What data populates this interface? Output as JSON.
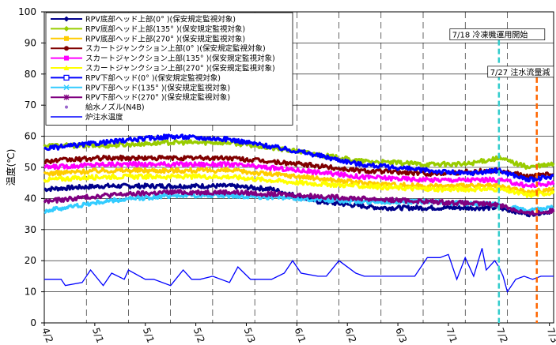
{
  "chart_data": {
    "type": "line",
    "ylabel": "温度(℃)",
    "ylim": [
      0,
      100
    ],
    "yticks": [
      0,
      10,
      20,
      30,
      40,
      50,
      60,
      70,
      80,
      90,
      100
    ],
    "x_range": [
      "2013-04-01",
      "2013-07-31"
    ],
    "xtick_dates": [
      "2013-04-01",
      "2013-04-11",
      "2013-04-21",
      "2013-05-01",
      "2013-05-11",
      "2013-05-21",
      "2013-05-31",
      "2013-06-10",
      "2013-06-20",
      "2013-06-30",
      "2013-07-10",
      "2013-07-20",
      "2013-07-30"
    ],
    "xtick_labels": [
      "4/2",
      "5/1",
      "5/1",
      "5/2",
      "5/3",
      "6/1",
      "6/2",
      "6/3",
      "7/1",
      "7/2",
      "7/3"
    ],
    "xtick_label_dates": [
      "2013-04-01",
      "2013-04-13",
      "2013-04-25",
      "2013-05-07",
      "2013-05-19",
      "2013-05-31",
      "2013-06-12",
      "2013-06-24",
      "2013-07-06",
      "2013-07-18",
      "2013-07-30"
    ],
    "legend_position": "top-left",
    "grid": true,
    "series": [
      {
        "name": "RPV底部ヘッド上部(0° )(保安規定監視対象)",
        "color": "#00008B",
        "marker": "diamond",
        "x": [
          "2013-04-01",
          "2013-04-15",
          "2013-05-01",
          "2013-05-15",
          "2013-05-25",
          "2013-06-05",
          "2013-06-20",
          "2013-07-05",
          "2013-07-18",
          "2013-07-25",
          "2013-07-31"
        ],
        "y": [
          43,
          44,
          44,
          44,
          43,
          39,
          37,
          37,
          37,
          35,
          36
        ]
      },
      {
        "name": "RPV底部ヘッド上部(135° )(保安規定監視対象)",
        "color": "#99CC00",
        "marker": "diamond",
        "x": [
          "2013-04-01",
          "2013-04-15",
          "2013-05-01",
          "2013-05-15",
          "2013-06-01",
          "2013-06-15",
          "2013-07-01",
          "2013-07-10",
          "2013-07-18",
          "2013-07-25",
          "2013-07-31"
        ],
        "y": [
          57,
          57,
          58,
          58,
          55,
          52,
          51,
          51,
          53,
          50,
          51
        ]
      },
      {
        "name": "RPV底部ヘッド上部(270° )(保安規定監視対象)",
        "color": "#FFCC00",
        "marker": "square",
        "x": [
          "2013-04-01",
          "2013-04-15",
          "2013-05-01",
          "2013-05-15",
          "2013-06-01",
          "2013-06-15",
          "2013-07-01",
          "2013-07-18",
          "2013-07-25",
          "2013-07-31"
        ],
        "y": [
          48,
          49,
          49,
          49,
          47,
          45,
          44,
          44,
          42,
          43
        ]
      },
      {
        "name": "スカートジャンクション上部(0° )(保安規定監視対象)",
        "color": "#800000",
        "marker": "circle",
        "x": [
          "2013-04-01",
          "2013-04-15",
          "2013-05-01",
          "2013-05-15",
          "2013-06-01",
          "2013-06-15",
          "2013-07-01",
          "2013-07-18",
          "2013-07-25",
          "2013-07-31"
        ],
        "y": [
          52,
          53,
          53,
          53,
          51,
          49,
          48,
          49,
          47,
          48
        ]
      },
      {
        "name": "スカートジャンクション上部(135° )(保安規定監視対象)",
        "color": "#FF00FF",
        "marker": "square",
        "x": [
          "2013-04-01",
          "2013-04-15",
          "2013-05-01",
          "2013-05-15",
          "2013-06-01",
          "2013-06-15",
          "2013-07-01",
          "2013-07-18",
          "2013-07-25",
          "2013-07-31"
        ],
        "y": [
          50,
          51,
          51,
          51,
          49,
          47,
          46,
          46,
          44,
          45
        ]
      },
      {
        "name": "スカートジャンクション上部(270° )(保安規定監視対象)",
        "color": "#FFFF00",
        "marker": "triangle",
        "x": [
          "2013-04-01",
          "2013-04-15",
          "2013-05-01",
          "2013-05-15",
          "2013-06-01",
          "2013-06-15",
          "2013-07-01",
          "2013-07-18",
          "2013-07-25",
          "2013-07-31"
        ],
        "y": [
          46,
          47,
          47,
          47,
          45,
          44,
          43,
          43,
          41,
          42
        ]
      },
      {
        "name": "RPV下部ヘッド(0° )(保安規定監視対象)",
        "color": "#0000FF",
        "marker": "square-open",
        "x": [
          "2013-04-01",
          "2013-04-15",
          "2013-05-01",
          "2013-05-15",
          "2013-06-01",
          "2013-06-15",
          "2013-07-01",
          "2013-07-10",
          "2013-07-18",
          "2013-07-25",
          "2013-07-31"
        ],
        "y": [
          56,
          58,
          60,
          59,
          55,
          51,
          49,
          48,
          49,
          46,
          47
        ]
      },
      {
        "name": "RPV下部ヘッド(135° )(保安規定監視対象)",
        "color": "#33CCFF",
        "marker": "x",
        "x": [
          "2013-04-01",
          "2013-04-15",
          "2013-05-01",
          "2013-05-15",
          "2013-06-01",
          "2013-06-15",
          "2013-07-01",
          "2013-07-18",
          "2013-07-25",
          "2013-07-31"
        ],
        "y": [
          36,
          39,
          41,
          41,
          40,
          39,
          39,
          38,
          36,
          37
        ]
      },
      {
        "name": "RPV下部ヘッド(270° )(保安規定監視対象)",
        "color": "#800080",
        "marker": "asterisk",
        "x": [
          "2013-04-01",
          "2013-04-15",
          "2013-05-01",
          "2013-05-15",
          "2013-06-01",
          "2013-06-15",
          "2013-07-01",
          "2013-07-18",
          "2013-07-25",
          "2013-07-31"
        ],
        "y": [
          39,
          41,
          42,
          42,
          41,
          40,
          39,
          38,
          35,
          36
        ]
      },
      {
        "name": "給水ノズル(N4B)",
        "color": "#9966CC",
        "marker": "point",
        "x": [],
        "y": []
      },
      {
        "name": "炉注水温度",
        "color": "#0000FF",
        "marker": "none",
        "x": [
          "2013-04-01",
          "2013-04-05",
          "2013-04-06",
          "2013-04-10",
          "2013-04-12",
          "2013-04-15",
          "2013-04-17",
          "2013-04-20",
          "2013-04-21",
          "2013-04-25",
          "2013-04-27",
          "2013-05-01",
          "2013-05-04",
          "2013-05-06",
          "2013-05-08",
          "2013-05-11",
          "2013-05-15",
          "2013-05-17",
          "2013-05-20",
          "2013-05-22",
          "2013-05-25",
          "2013-05-28",
          "2013-05-30",
          "2013-06-01",
          "2013-06-05",
          "2013-06-07",
          "2013-06-10",
          "2013-06-14",
          "2013-06-16",
          "2013-06-20",
          "2013-06-24",
          "2013-06-28",
          "2013-07-01",
          "2013-07-04",
          "2013-07-06",
          "2013-07-08",
          "2013-07-10",
          "2013-07-12",
          "2013-07-14",
          "2013-07-15",
          "2013-07-17",
          "2013-07-18",
          "2013-07-19",
          "2013-07-20",
          "2013-07-22",
          "2013-07-24",
          "2013-07-26",
          "2013-07-28",
          "2013-07-31"
        ],
        "y": [
          14,
          14,
          12,
          13,
          17,
          12,
          16,
          14,
          17,
          14,
          14,
          12,
          17,
          14,
          14,
          15,
          13,
          18,
          14,
          14,
          14,
          16,
          20,
          16,
          15,
          15,
          20,
          16,
          15,
          15,
          15,
          15,
          21,
          21,
          22,
          14,
          21,
          15,
          24,
          17,
          20,
          18,
          15,
          10,
          14,
          15,
          14,
          15,
          15
        ]
      }
    ],
    "annotations": [
      {
        "date": "2013-07-18",
        "y": 93,
        "text": "7/18 冷凍機運用開始",
        "color": "#33CCCC",
        "style": "dashed"
      },
      {
        "date": "2013-07-27",
        "y": 81,
        "text": "7/27 注水流量減",
        "color": "#FF6600",
        "style": "dashed"
      }
    ]
  }
}
